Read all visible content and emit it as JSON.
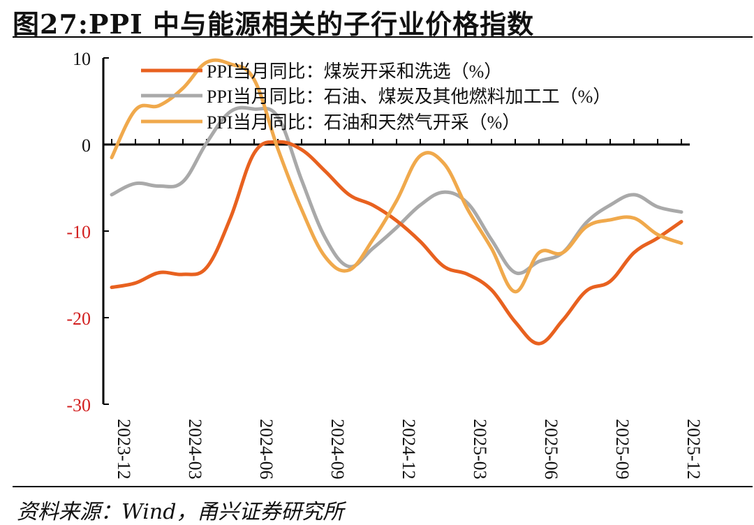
{
  "title": "图27:PPI 中与能源相关的子行业价格指数",
  "source": "资料来源：Wind，甬兴证券研究所",
  "chart_data": {
    "type": "line",
    "title": "图27:PPI 中与能源相关的子行业价格指数",
    "xlabel": "",
    "ylabel": "",
    "ylim": [
      -30,
      10
    ],
    "yticks": [
      10,
      0,
      -10,
      -20,
      -30
    ],
    "ytick_labels": [
      "10",
      "0",
      "-10",
      "-20",
      "-30"
    ],
    "negative_tick_color": "#d21f1f",
    "x": [
      "2023-12",
      "2024-01",
      "2024-02",
      "2024-03",
      "2024-04",
      "2024-05",
      "2024-06",
      "2024-07",
      "2024-08",
      "2024-09",
      "2024-10",
      "2024-11",
      "2024-12",
      "2025-01",
      "2025-02",
      "2025-03",
      "2025-04",
      "2025-05",
      "2025-06",
      "2025-07",
      "2025-08",
      "2025-09",
      "2025-10",
      "2025-11",
      "2025-12"
    ],
    "x_tick_labels": [
      "2023-12",
      "2024-03",
      "2024-06",
      "2024-09",
      "2024-12",
      "2025-03",
      "2025-06",
      "2025-09",
      "2025-12"
    ],
    "x_tick_indices": [
      0,
      3,
      6,
      9,
      12,
      15,
      18,
      21,
      24
    ],
    "legend_position": "top",
    "series": [
      {
        "name": "PPI当月同比：煤炭开采和洗选（%）",
        "color": "#e8611f",
        "values": [
          -16.5,
          -16.0,
          -14.8,
          -15.0,
          -14.2,
          -8.5,
          -1.0,
          0.3,
          -0.6,
          -3.1,
          -5.8,
          -7.0,
          -8.8,
          -11.2,
          -14.1,
          -15.0,
          -16.8,
          -20.5,
          -23.0,
          -20.3,
          -16.9,
          -15.8,
          -12.5,
          -10.8,
          -8.9
        ]
      },
      {
        "name": "PPI当月同比：石油、煤炭及其他燃料加工工（%）",
        "color": "#a9a9a9",
        "values": [
          -5.8,
          -4.5,
          -4.8,
          -4.3,
          0.2,
          3.8,
          4.1,
          3.2,
          -4.1,
          -10.8,
          -14.1,
          -12.0,
          -9.6,
          -7.0,
          -5.5,
          -6.8,
          -11.0,
          -14.8,
          -13.5,
          -12.5,
          -9.0,
          -7.0,
          -5.8,
          -7.2,
          -7.8
        ]
      },
      {
        "name": "PPI当月同比：石油和天然气开采（%）",
        "color": "#f0a94c",
        "values": [
          -1.5,
          4.0,
          4.5,
          6.5,
          9.5,
          9.3,
          7.5,
          -0.5,
          -7.5,
          -13.0,
          -14.5,
          -11.0,
          -6.5,
          -1.3,
          -2.2,
          -7.5,
          -12.0,
          -17.0,
          -12.5,
          -12.5,
          -9.5,
          -8.7,
          -8.5,
          -10.4,
          -11.4
        ]
      }
    ]
  }
}
